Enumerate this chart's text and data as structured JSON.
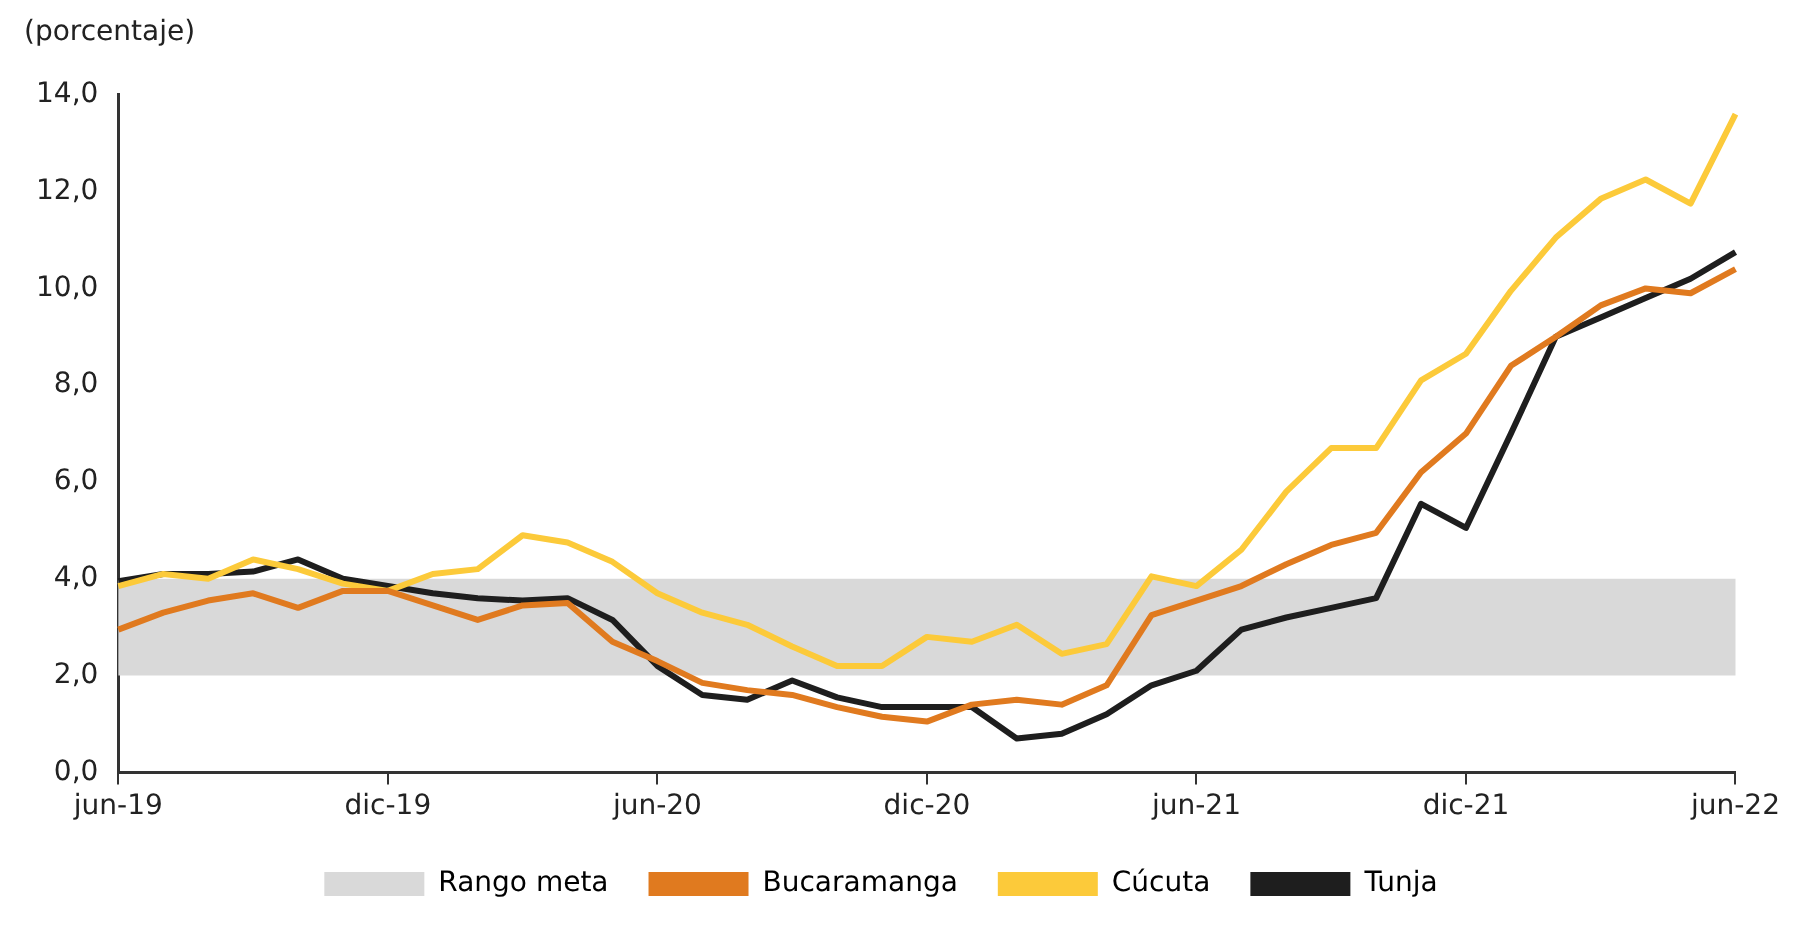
{
  "chart_data": {
    "type": "line",
    "ylabel": "(porcentaje)",
    "categories": [
      "jun-19",
      null,
      null,
      null,
      null,
      null,
      "dic-19",
      null,
      null,
      null,
      null,
      null,
      "jun-20",
      null,
      null,
      null,
      null,
      null,
      "dic-20",
      null,
      null,
      null,
      null,
      null,
      "jun-21",
      null,
      null,
      null,
      null,
      null,
      "dic-21",
      null,
      null,
      null,
      null,
      null,
      "jun-22"
    ],
    "series": [
      {
        "name": "Bucaramanga",
        "color": "#e07a1f",
        "values": [
          2.95,
          3.3,
          3.55,
          3.7,
          3.4,
          3.75,
          3.75,
          3.45,
          3.15,
          3.45,
          3.5,
          2.7,
          2.3,
          1.85,
          1.7,
          1.6,
          1.35,
          1.15,
          1.05,
          1.4,
          1.5,
          1.4,
          1.8,
          3.25,
          3.55,
          3.85,
          4.3,
          4.7,
          4.95,
          6.2,
          7.0,
          8.4,
          9.0,
          9.65,
          10.0,
          9.9,
          10.4
        ]
      },
      {
        "name": "Cúcuta",
        "color": "#fcca3a",
        "values": [
          3.85,
          4.1,
          4.0,
          4.4,
          4.2,
          3.9,
          3.75,
          4.1,
          4.2,
          4.9,
          4.75,
          4.35,
          3.7,
          3.3,
          3.05,
          2.6,
          2.2,
          2.2,
          2.8,
          2.7,
          3.05,
          2.45,
          2.65,
          4.05,
          3.85,
          4.6,
          5.8,
          6.7,
          6.7,
          8.1,
          8.65,
          9.95,
          11.05,
          11.85,
          12.25,
          11.75,
          13.6
        ]
      },
      {
        "name": "Tunja",
        "color": "#1e1e1e",
        "values": [
          3.95,
          4.1,
          4.1,
          4.15,
          4.4,
          4.0,
          3.85,
          3.7,
          3.6,
          3.55,
          3.6,
          3.15,
          2.2,
          1.6,
          1.5,
          1.9,
          1.55,
          1.35,
          1.35,
          1.35,
          0.7,
          0.8,
          1.2,
          1.8,
          2.1,
          2.95,
          3.2,
          3.4,
          3.6,
          5.55,
          5.05,
          7.0,
          9.0,
          9.4,
          9.8,
          10.2,
          10.75
        ]
      }
    ],
    "bands": [
      {
        "axis": "y",
        "from": 2,
        "to": 4,
        "label": "Rango meta",
        "color": "#d9d9d9"
      }
    ],
    "ylim": [
      0,
      14
    ],
    "yticks": [
      {
        "value": 0,
        "label": "0,0"
      },
      {
        "value": 2,
        "label": "2,0"
      },
      {
        "value": 4,
        "label": "4,0"
      },
      {
        "value": 6,
        "label": "6,0"
      },
      {
        "value": 8,
        "label": "8,0"
      },
      {
        "value": 10,
        "label": "10,0"
      },
      {
        "value": 12,
        "label": "12,0"
      },
      {
        "value": 14,
        "label": "14,0"
      }
    ],
    "grid": false,
    "legend": "bottom",
    "marker": "none",
    "line_style": "solid"
  }
}
